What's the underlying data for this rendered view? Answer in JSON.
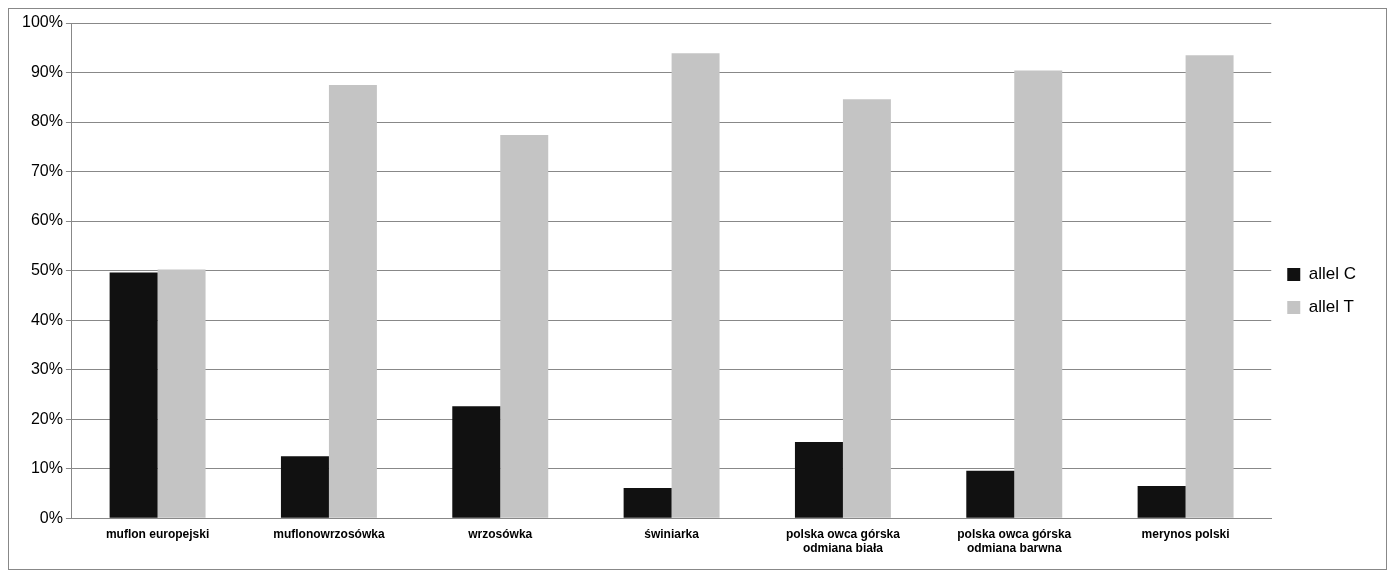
{
  "chart_data": {
    "type": "bar",
    "categories": [
      "muflon europejski",
      "muflonowrzosówka",
      "wrzosówka",
      "świniarka",
      "polska owca górska odmiana biała",
      "polska owca górska odmiana barwna",
      "merynos polski"
    ],
    "series": [
      {
        "name": "allel C",
        "color": "#111111",
        "values": [
          49.6,
          12.5,
          22.6,
          6.1,
          15.4,
          9.6,
          6.5
        ]
      },
      {
        "name": "allel T",
        "color": "#c4c4c4",
        "values": [
          50.2,
          87.5,
          77.4,
          93.9,
          84.6,
          90.4,
          93.5
        ]
      }
    ],
    "ylim": [
      0,
      100
    ],
    "yticks": [
      {
        "value": 0,
        "label": "0%"
      },
      {
        "value": 10,
        "label": "10%"
      },
      {
        "value": 20,
        "label": "20%"
      },
      {
        "value": 30,
        "label": "30%"
      },
      {
        "value": 40,
        "label": "40%"
      },
      {
        "value": 50,
        "label": "50%"
      },
      {
        "value": 60,
        "label": "60%"
      },
      {
        "value": 70,
        "label": "70%"
      },
      {
        "value": 80,
        "label": "80%"
      },
      {
        "value": 90,
        "label": "90%"
      },
      {
        "value": 100,
        "label": "100%"
      }
    ],
    "grid": "y",
    "legend": "right"
  }
}
